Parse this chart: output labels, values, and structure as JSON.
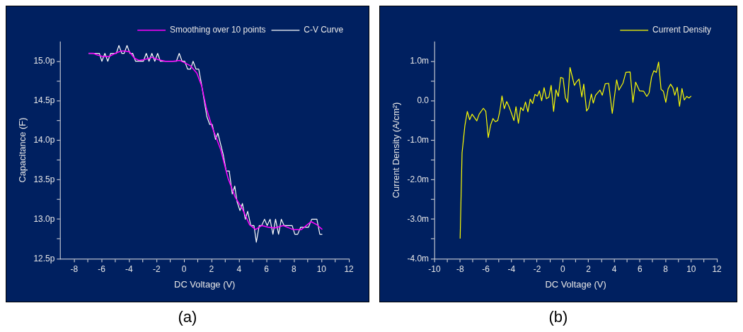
{
  "chart_data": [
    {
      "type": "line",
      "xlabel": "DC Voltage (V)",
      "ylabel": "Capacitance (F)",
      "legend": "top right",
      "marker": "none",
      "annotations": [
        "(a)"
      ],
      "xlim": [
        -9,
        12
      ],
      "xticks": [
        -8,
        {
          "value": -7,
          "label": null
        },
        -6,
        {
          "value": -5,
          "label": null
        },
        -4,
        {
          "value": -3,
          "label": null
        },
        -2,
        {
          "value": -1,
          "label": null
        },
        0,
        {
          "value": 1,
          "label": null
        },
        2,
        {
          "value": 3,
          "label": null
        },
        4,
        {
          "value": 5,
          "label": null
        },
        6,
        {
          "value": 7,
          "label": null
        },
        8,
        {
          "value": 9,
          "label": null
        },
        10,
        {
          "value": 11,
          "label": null
        },
        12
      ],
      "ylim": [
        12.5,
        15.25
      ],
      "yticks": [
        {
          "value": 12.5,
          "label": "12.5p"
        },
        {
          "value": 12.75,
          "label": null
        },
        {
          "value": 13,
          "label": "13.0p"
        },
        {
          "value": 13.25,
          "label": null
        },
        {
          "value": 13.5,
          "label": "13.5p"
        },
        {
          "value": 13.75,
          "label": null
        },
        {
          "value": 14,
          "label": "14.0p"
        },
        {
          "value": 14.25,
          "label": null
        },
        {
          "value": 14.5,
          "label": "14.5p"
        },
        {
          "value": 14.75,
          "label": null
        },
        {
          "value": 15,
          "label": "15.0p"
        }
      ],
      "series": [
        {
          "name": "C-V Curve",
          "color": "#ffffff",
          "x": [
            -6.95,
            -6.16,
            -5.98,
            -5.76,
            -5.55,
            -5.34,
            -4.93,
            -4.74,
            -4.53,
            -4.36,
            -4.15,
            -3.94,
            -3.74,
            -3.53,
            -2.96,
            -2.75,
            -2.55,
            -2.34,
            -2.13,
            -1.92,
            -1.73,
            -0.56,
            -0.35,
            -0.14,
            0.05,
            0.26,
            0.47,
            0.66,
            0.87,
            1.07,
            1.28,
            1.45,
            1.66,
            1.87,
            2.05,
            2.29,
            2.46,
            2.85,
            3.07,
            3.29,
            3.51,
            3.69,
            3.86,
            4.07,
            4.25,
            4.46,
            4.63,
            4.86,
            5.09,
            5.26,
            5.47,
            5.65,
            5.86,
            6.05,
            6.26,
            6.47,
            6.66,
            6.88,
            7.08,
            7.28,
            7.49,
            7.87,
            8.06,
            8.27,
            8.49,
            9.06,
            9.29,
            9.67,
            9.88,
            10.06
          ],
          "values": [
            15.1,
            15.1,
            15.0,
            15.1,
            15.0,
            15.1,
            15.1,
            15.2,
            15.1,
            15.1,
            15.2,
            15.1,
            15.1,
            15.0,
            15.0,
            15.1,
            15.0,
            15.1,
            15.0,
            15.1,
            15.0,
            15.0,
            15.1,
            15.0,
            15.0,
            14.9,
            14.9,
            15.0,
            14.9,
            14.9,
            14.7,
            14.52,
            14.3,
            14.2,
            14.2,
            14.01,
            14.09,
            13.82,
            13.61,
            13.61,
            13.32,
            13.42,
            13.22,
            13.11,
            13.2,
            13.0,
            13.1,
            12.92,
            12.92,
            12.71,
            12.92,
            12.92,
            13.0,
            12.92,
            13.0,
            12.81,
            13.0,
            12.81,
            13.0,
            12.92,
            12.92,
            12.92,
            12.81,
            12.81,
            12.9,
            12.9,
            13.0,
            13.0,
            12.81,
            12.81
          ]
        },
        {
          "name": "Smoothing over 10 points",
          "color": "#ff00ff",
          "x": [
            -6.95,
            -6.6,
            -6.33,
            -5.9,
            -5.46,
            -5.02,
            -4.58,
            -4.32,
            -3.97,
            -3.62,
            -3.27,
            -2.92,
            -2.31,
            -1.87,
            -1.35,
            -0.82,
            -0.3,
            0.05,
            0.49,
            0.93,
            1.28,
            1.63,
            2.06,
            2.41,
            2.67,
            3.2,
            3.72,
            4.25,
            4.77,
            5.21,
            5.65,
            6.09,
            6.61,
            7.22,
            7.92,
            8.54,
            8.89,
            9.24,
            9.67,
            10.06
          ],
          "values": [
            15.1,
            15.1,
            15.08,
            15.06,
            15.06,
            15.1,
            15.13,
            15.13,
            15.12,
            15.04,
            15.01,
            15.02,
            15.05,
            15.02,
            15.0,
            15.0,
            15.01,
            14.98,
            14.94,
            14.85,
            14.69,
            14.4,
            14.16,
            14.0,
            13.88,
            13.52,
            13.28,
            13.13,
            12.93,
            12.87,
            12.92,
            12.9,
            12.89,
            12.92,
            12.87,
            12.87,
            12.92,
            12.97,
            12.93,
            12.87
          ]
        }
      ]
    },
    {
      "type": "line",
      "xlabel": "DC Voltage (V)",
      "ylabel": "Current Density (A/cm²)",
      "legend": "top right",
      "marker": "none",
      "annotations": [
        "(b)"
      ],
      "xlim": [
        -10,
        12
      ],
      "xticks": [
        -10,
        {
          "value": -9,
          "label": null
        },
        -8,
        {
          "value": -7,
          "label": null
        },
        -6,
        {
          "value": -5,
          "label": null
        },
        -4,
        {
          "value": -3,
          "label": null
        },
        -2,
        {
          "value": -1,
          "label": null
        },
        0,
        {
          "value": 1,
          "label": null
        },
        2,
        {
          "value": 3,
          "label": null
        },
        4,
        {
          "value": 5,
          "label": null
        },
        6,
        {
          "value": 7,
          "label": null
        },
        8,
        {
          "value": 9,
          "label": null
        },
        10,
        {
          "value": 11,
          "label": null
        },
        12
      ],
      "ylim": [
        -4,
        1.5
      ],
      "yticks": [
        {
          "value": -4,
          "label": "-4.0m"
        },
        {
          "value": -3.5,
          "label": null
        },
        {
          "value": -3,
          "label": "-3.0m"
        },
        {
          "value": -2.5,
          "label": null
        },
        {
          "value": -2,
          "label": "-2.0m"
        },
        {
          "value": -1.5,
          "label": null
        },
        {
          "value": -1,
          "label": "-1.0m"
        },
        {
          "value": -0.5,
          "label": null
        },
        {
          "value": 0,
          "label": "0.0"
        },
        {
          "value": 0.5,
          "label": null
        },
        {
          "value": 1,
          "label": "1.0m"
        }
      ],
      "series": [
        {
          "name": "Current Density",
          "color": "#ffff00",
          "x": [
            -8.0,
            -7.85,
            -7.63,
            -7.44,
            -7.26,
            -7.07,
            -6.7,
            -6.52,
            -6.19,
            -6.0,
            -5.81,
            -5.63,
            -5.44,
            -5.26,
            -5.07,
            -4.91,
            -4.74,
            -4.56,
            -4.37,
            -4.19,
            -4.0,
            -3.81,
            -3.65,
            -3.46,
            -3.28,
            -3.09,
            -2.91,
            -2.72,
            -2.54,
            -2.35,
            -2.17,
            -1.98,
            -1.83,
            -1.65,
            -1.46,
            -1.28,
            -1.09,
            -0.91,
            -0.72,
            -0.54,
            -0.35,
            -0.17,
            0.02,
            0.2,
            0.37,
            0.56,
            0.9,
            1.07,
            1.26,
            1.48,
            1.63,
            1.85,
            2.0,
            2.22,
            2.37,
            2.55,
            2.89,
            3.07,
            3.3,
            3.57,
            3.85,
            4.19,
            4.37,
            4.69,
            4.91,
            5.24,
            5.46,
            5.67,
            5.98,
            6.3,
            6.54,
            6.72,
            6.91,
            7.09,
            7.28,
            7.46,
            7.65,
            7.83,
            8.02,
            8.2,
            8.39,
            8.57,
            8.72,
            8.91,
            9.09,
            9.28,
            9.46,
            9.65,
            9.83,
            10.0
          ],
          "values": [
            -3.49,
            -1.32,
            -0.63,
            -0.27,
            -0.48,
            -0.34,
            -0.51,
            -0.34,
            -0.19,
            -0.27,
            -0.93,
            -0.62,
            -0.45,
            -0.53,
            -0.5,
            -0.27,
            0.12,
            -0.2,
            -0.02,
            -0.15,
            -0.32,
            -0.5,
            -0.15,
            -0.57,
            -0.17,
            -0.25,
            -0.03,
            -0.28,
            0.04,
            -0.07,
            0.16,
            0.12,
            0.25,
            0.0,
            0.33,
            0.05,
            0.09,
            0.39,
            -0.27,
            0.28,
            0.11,
            0.59,
            0.57,
            0.08,
            -0.04,
            0.84,
            0.39,
            0.48,
            0.55,
            0.1,
            0.42,
            -0.26,
            -0.19,
            0.17,
            -0.06,
            0.14,
            0.27,
            0.14,
            0.43,
            0.44,
            -0.32,
            0.53,
            0.27,
            0.45,
            0.72,
            0.73,
            -0.04,
            0.47,
            0.25,
            0.24,
            0.11,
            0.2,
            0.6,
            0.76,
            0.72,
            0.98,
            0.29,
            0.24,
            -0.04,
            0.3,
            0.42,
            0.33,
            0.14,
            0.34,
            -0.14,
            0.31,
            0.02,
            0.11,
            0.07,
            0.12
          ]
        }
      ]
    }
  ]
}
